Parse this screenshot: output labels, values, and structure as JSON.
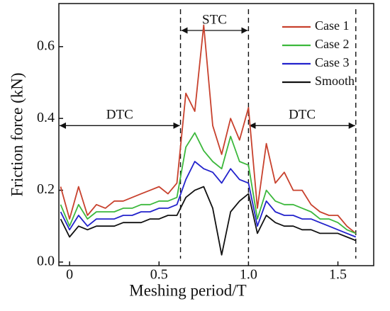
{
  "chart_data": {
    "type": "line",
    "xlabel": "Meshing period/T",
    "ylabel": "Friction force (kN)",
    "x": [
      -0.05,
      0,
      0.05,
      0.1,
      0.15,
      0.2,
      0.25,
      0.3,
      0.35,
      0.4,
      0.45,
      0.5,
      0.55,
      0.6,
      0.65,
      0.7,
      0.75,
      0.8,
      0.85,
      0.9,
      0.95,
      1.0,
      1.05,
      1.1,
      1.15,
      1.2,
      1.25,
      1.3,
      1.35,
      1.4,
      1.45,
      1.5,
      1.55,
      1.6
    ],
    "series": [
      {
        "name": "Case 1",
        "color": "#c8412d",
        "values": [
          0.21,
          0.12,
          0.21,
          0.13,
          0.16,
          0.15,
          0.17,
          0.17,
          0.18,
          0.19,
          0.2,
          0.21,
          0.19,
          0.22,
          0.47,
          0.42,
          0.66,
          0.38,
          0.3,
          0.4,
          0.34,
          0.43,
          0.15,
          0.33,
          0.22,
          0.25,
          0.2,
          0.2,
          0.16,
          0.14,
          0.13,
          0.13,
          0.1,
          0.08
        ]
      },
      {
        "name": "Case 2",
        "color": "#3cb83c",
        "values": [
          0.16,
          0.1,
          0.16,
          0.12,
          0.14,
          0.14,
          0.14,
          0.15,
          0.15,
          0.16,
          0.16,
          0.17,
          0.17,
          0.18,
          0.32,
          0.36,
          0.31,
          0.28,
          0.26,
          0.35,
          0.28,
          0.27,
          0.12,
          0.2,
          0.17,
          0.16,
          0.16,
          0.15,
          0.14,
          0.12,
          0.12,
          0.11,
          0.09,
          0.08
        ]
      },
      {
        "name": "Case 3",
        "color": "#2222cc",
        "values": [
          0.14,
          0.09,
          0.13,
          0.1,
          0.12,
          0.12,
          0.12,
          0.13,
          0.13,
          0.14,
          0.14,
          0.15,
          0.15,
          0.16,
          0.23,
          0.28,
          0.26,
          0.25,
          0.22,
          0.26,
          0.23,
          0.22,
          0.1,
          0.17,
          0.14,
          0.13,
          0.13,
          0.12,
          0.12,
          0.11,
          0.1,
          0.09,
          0.08,
          0.07
        ]
      },
      {
        "name": "Smooth",
        "color": "#111111",
        "values": [
          0.12,
          0.07,
          0.1,
          0.09,
          0.1,
          0.1,
          0.1,
          0.11,
          0.11,
          0.11,
          0.12,
          0.12,
          0.13,
          0.13,
          0.18,
          0.2,
          0.21,
          0.15,
          0.02,
          0.14,
          0.17,
          0.19,
          0.08,
          0.13,
          0.11,
          0.1,
          0.1,
          0.09,
          0.09,
          0.08,
          0.08,
          0.08,
          0.07,
          0.06
        ]
      }
    ],
    "regions": [
      {
        "label": "DTC",
        "start": -0.06,
        "end": 0.62
      },
      {
        "label": "STC",
        "start": 0.62,
        "end": 1.0
      },
      {
        "label": "DTC",
        "start": 1.0,
        "end": 1.6
      }
    ],
    "xlim": [
      -0.06,
      1.7
    ],
    "ylim": [
      -0.01,
      0.72
    ],
    "xticks": [
      0,
      0.5,
      {
        "value": 1,
        "label": "1.0"
      },
      1.5
    ],
    "yticks": [
      {
        "value": 0,
        "label": "0.0"
      },
      0.2,
      0.4,
      0.6
    ],
    "legend": "upper right"
  }
}
